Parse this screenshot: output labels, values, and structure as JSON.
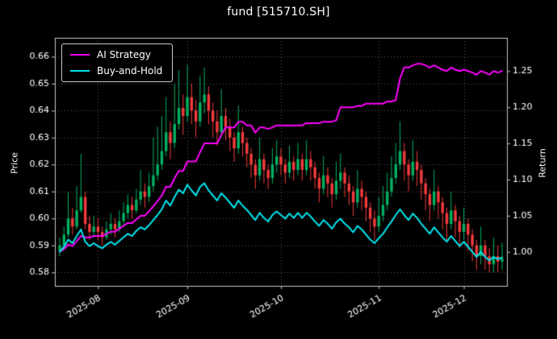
{
  "title": "fund [515710.SH]",
  "axes": {
    "left_label": "Price",
    "right_label": "Return",
    "price_ticks": [
      0.58,
      0.59,
      0.6,
      0.61,
      0.62,
      0.63,
      0.64,
      0.65,
      0.66
    ],
    "return_ticks": [
      1.0,
      1.05,
      1.1,
      1.15,
      1.2,
      1.25
    ],
    "x_tick_labels": [
      "2025-08",
      "2025-09",
      "2025-10",
      "2025-11",
      "2025-12"
    ],
    "price_lim": [
      0.575,
      0.667
    ],
    "return_lim": [
      0.953,
      1.296
    ]
  },
  "colors": {
    "background": "#000000",
    "text": "#ffffff",
    "frame": "#c8c8c8",
    "grid": "#5a5a5a",
    "candle_up": "#00b060",
    "candle_down": "#f23b3b",
    "ai_strategy": "#ff00ff",
    "buy_and_hold": "#00e5ee"
  },
  "legend": {
    "items": [
      {
        "label": "AI Strategy",
        "color": "#ff00ff"
      },
      {
        "label": "Buy-and-Hold",
        "color": "#00e5ee"
      }
    ]
  },
  "chart_data": {
    "type": "candlestick+line",
    "title": "fund [515710.SH]",
    "grid": "dotted",
    "legend_position": "upper left",
    "left_axis": {
      "label": "Price",
      "lim": [
        0.575,
        0.667
      ]
    },
    "right_axis": {
      "label": "Return",
      "lim": [
        0.953,
        1.296
      ]
    },
    "dates": [
      "2025-07-21",
      "2025-07-22",
      "2025-07-23",
      "2025-07-24",
      "2025-07-25",
      "2025-07-28",
      "2025-07-29",
      "2025-07-30",
      "2025-07-31",
      "2025-08-01",
      "2025-08-04",
      "2025-08-05",
      "2025-08-06",
      "2025-08-07",
      "2025-08-08",
      "2025-08-11",
      "2025-08-12",
      "2025-08-13",
      "2025-08-14",
      "2025-08-15",
      "2025-08-18",
      "2025-08-19",
      "2025-08-20",
      "2025-08-21",
      "2025-08-22",
      "2025-08-25",
      "2025-08-26",
      "2025-08-27",
      "2025-08-28",
      "2025-08-29",
      "2025-09-01",
      "2025-09-02",
      "2025-09-03",
      "2025-09-04",
      "2025-09-05",
      "2025-09-08",
      "2025-09-09",
      "2025-09-10",
      "2025-09-11",
      "2025-09-12",
      "2025-09-15",
      "2025-09-16",
      "2025-09-17",
      "2025-09-18",
      "2025-09-19",
      "2025-09-22",
      "2025-09-23",
      "2025-09-24",
      "2025-09-25",
      "2025-09-26",
      "2025-09-29",
      "2025-09-30",
      "2025-10-01",
      "2025-10-02",
      "2025-10-03",
      "2025-10-06",
      "2025-10-07",
      "2025-10-08",
      "2025-10-09",
      "2025-10-10",
      "2025-10-13",
      "2025-10-14",
      "2025-10-15",
      "2025-10-16",
      "2025-10-17",
      "2025-10-20",
      "2025-10-21",
      "2025-10-22",
      "2025-10-23",
      "2025-10-24",
      "2025-10-27",
      "2025-10-28",
      "2025-10-29",
      "2025-10-30",
      "2025-10-31",
      "2025-11-03",
      "2025-11-04",
      "2025-11-05",
      "2025-11-06",
      "2025-11-07",
      "2025-11-10",
      "2025-11-11",
      "2025-11-12",
      "2025-11-13",
      "2025-11-14",
      "2025-11-17",
      "2025-11-18",
      "2025-11-19",
      "2025-11-20",
      "2025-11-21",
      "2025-11-24",
      "2025-11-25",
      "2025-11-26",
      "2025-11-27",
      "2025-11-28",
      "2025-12-01",
      "2025-12-02",
      "2025-12-03",
      "2025-12-04",
      "2025-12-05",
      "2025-12-08",
      "2025-12-09",
      "2025-12-10",
      "2025-12-11",
      "2025-12-12"
    ],
    "open": [
      0.588,
      0.59,
      0.594,
      0.6,
      0.597,
      0.603,
      0.608,
      0.598,
      0.595,
      0.597,
      0.595,
      0.593,
      0.596,
      0.598,
      0.596,
      0.599,
      0.602,
      0.605,
      0.603,
      0.607,
      0.61,
      0.608,
      0.612,
      0.616,
      0.62,
      0.625,
      0.632,
      0.628,
      0.635,
      0.641,
      0.638,
      0.645,
      0.64,
      0.636,
      0.643,
      0.646,
      0.64,
      0.636,
      0.632,
      0.638,
      0.634,
      0.63,
      0.626,
      0.632,
      0.628,
      0.624,
      0.62,
      0.616,
      0.622,
      0.618,
      0.615,
      0.62,
      0.623,
      0.62,
      0.617,
      0.621,
      0.618,
      0.622,
      0.618,
      0.622,
      0.619,
      0.615,
      0.611,
      0.616,
      0.613,
      0.609,
      0.614,
      0.617,
      0.613,
      0.61,
      0.606,
      0.611,
      0.608,
      0.604,
      0.6,
      0.597,
      0.601,
      0.605,
      0.61,
      0.615,
      0.62,
      0.625,
      0.62,
      0.616,
      0.621,
      0.618,
      0.613,
      0.609,
      0.605,
      0.61,
      0.606,
      0.602,
      0.598,
      0.603,
      0.599,
      0.595,
      0.598,
      0.594,
      0.59,
      0.586,
      0.59,
      0.586,
      0.583,
      0.586,
      0.584
    ],
    "high": [
      0.593,
      0.597,
      0.61,
      0.604,
      0.612,
      0.624,
      0.61,
      0.601,
      0.601,
      0.6,
      0.597,
      0.599,
      0.602,
      0.6,
      0.603,
      0.606,
      0.609,
      0.608,
      0.611,
      0.618,
      0.613,
      0.617,
      0.63,
      0.634,
      0.638,
      0.645,
      0.636,
      0.65,
      0.655,
      0.646,
      0.657,
      0.65,
      0.644,
      0.653,
      0.656,
      0.649,
      0.643,
      0.64,
      0.648,
      0.641,
      0.637,
      0.632,
      0.642,
      0.634,
      0.63,
      0.626,
      0.622,
      0.63,
      0.624,
      0.62,
      0.626,
      0.629,
      0.626,
      0.622,
      0.627,
      0.623,
      0.628,
      0.624,
      0.629,
      0.625,
      0.621,
      0.617,
      0.623,
      0.619,
      0.615,
      0.621,
      0.624,
      0.619,
      0.616,
      0.612,
      0.618,
      0.614,
      0.61,
      0.606,
      0.603,
      0.608,
      0.612,
      0.617,
      0.623,
      0.628,
      0.636,
      0.628,
      0.622,
      0.629,
      0.625,
      0.62,
      0.615,
      0.611,
      0.618,
      0.612,
      0.608,
      0.604,
      0.61,
      0.605,
      0.601,
      0.604,
      0.6,
      0.596,
      0.592,
      0.597,
      0.592,
      0.589,
      0.593,
      0.59,
      0.591
    ],
    "low": [
      0.586,
      0.589,
      0.593,
      0.594,
      0.596,
      0.602,
      0.596,
      0.592,
      0.593,
      0.592,
      0.59,
      0.592,
      0.594,
      0.593,
      0.595,
      0.597,
      0.6,
      0.6,
      0.602,
      0.605,
      0.604,
      0.606,
      0.61,
      0.614,
      0.618,
      0.623,
      0.622,
      0.626,
      0.633,
      0.631,
      0.636,
      0.635,
      0.63,
      0.634,
      0.639,
      0.635,
      0.63,
      0.627,
      0.63,
      0.629,
      0.625,
      0.621,
      0.624,
      0.623,
      0.619,
      0.615,
      0.611,
      0.614,
      0.613,
      0.611,
      0.613,
      0.617,
      0.616,
      0.613,
      0.615,
      0.614,
      0.616,
      0.614,
      0.616,
      0.614,
      0.611,
      0.606,
      0.609,
      0.608,
      0.604,
      0.607,
      0.611,
      0.608,
      0.605,
      0.601,
      0.604,
      0.603,
      0.599,
      0.595,
      0.592,
      0.595,
      0.599,
      0.603,
      0.608,
      0.613,
      0.618,
      0.614,
      0.61,
      0.614,
      0.612,
      0.607,
      0.603,
      0.599,
      0.603,
      0.6,
      0.596,
      0.592,
      0.596,
      0.593,
      0.589,
      0.592,
      0.588,
      0.584,
      0.581,
      0.583,
      0.581,
      0.58,
      0.58,
      0.58,
      0.581
    ],
    "close": [
      0.59,
      0.594,
      0.6,
      0.597,
      0.603,
      0.608,
      0.598,
      0.595,
      0.597,
      0.595,
      0.593,
      0.596,
      0.598,
      0.596,
      0.599,
      0.602,
      0.605,
      0.603,
      0.607,
      0.61,
      0.608,
      0.612,
      0.616,
      0.62,
      0.625,
      0.632,
      0.628,
      0.635,
      0.641,
      0.638,
      0.645,
      0.64,
      0.636,
      0.643,
      0.646,
      0.64,
      0.636,
      0.632,
      0.638,
      0.634,
      0.63,
      0.626,
      0.632,
      0.628,
      0.624,
      0.62,
      0.616,
      0.622,
      0.618,
      0.615,
      0.62,
      0.623,
      0.62,
      0.617,
      0.621,
      0.618,
      0.622,
      0.618,
      0.622,
      0.619,
      0.615,
      0.611,
      0.616,
      0.613,
      0.609,
      0.614,
      0.617,
      0.613,
      0.61,
      0.606,
      0.611,
      0.608,
      0.604,
      0.6,
      0.597,
      0.601,
      0.605,
      0.61,
      0.615,
      0.62,
      0.625,
      0.62,
      0.616,
      0.621,
      0.618,
      0.613,
      0.609,
      0.605,
      0.61,
      0.606,
      0.602,
      0.598,
      0.603,
      0.599,
      0.595,
      0.598,
      0.594,
      0.59,
      0.586,
      0.59,
      0.586,
      0.583,
      0.586,
      0.584,
      0.585
    ],
    "series": [
      {
        "name": "AI Strategy",
        "axis": "return",
        "color": "#ff00ff",
        "values": [
          1.0,
          1.004,
          1.01,
          1.008,
          1.015,
          1.022,
          1.02,
          1.02,
          1.022,
          1.022,
          1.022,
          1.025,
          1.028,
          1.028,
          1.032,
          1.036,
          1.04,
          1.04,
          1.045,
          1.05,
          1.05,
          1.056,
          1.063,
          1.07,
          1.078,
          1.09,
          1.09,
          1.102,
          1.112,
          1.112,
          1.125,
          1.125,
          1.125,
          1.138,
          1.15,
          1.15,
          1.15,
          1.15,
          1.162,
          1.172,
          1.172,
          1.172,
          1.18,
          1.18,
          1.175,
          1.175,
          1.165,
          1.172,
          1.172,
          1.17,
          1.172,
          1.175,
          1.175,
          1.175,
          1.175,
          1.175,
          1.175,
          1.175,
          1.178,
          1.178,
          1.178,
          1.178,
          1.18,
          1.18,
          1.18,
          1.182,
          1.2,
          1.2,
          1.2,
          1.2,
          1.202,
          1.202,
          1.205,
          1.205,
          1.205,
          1.205,
          1.205,
          1.208,
          1.208,
          1.21,
          1.24,
          1.255,
          1.255,
          1.258,
          1.26,
          1.26,
          1.258,
          1.255,
          1.258,
          1.255,
          1.252,
          1.25,
          1.255,
          1.252,
          1.25,
          1.252,
          1.25,
          1.248,
          1.245,
          1.25,
          1.248,
          1.245,
          1.25,
          1.248,
          1.25
        ]
      },
      {
        "name": "Buy-and-Hold",
        "axis": "return",
        "color": "#00e5ee",
        "values": [
          1.0,
          1.007,
          1.017,
          1.012,
          1.022,
          1.031,
          1.014,
          1.008,
          1.012,
          1.008,
          1.005,
          1.01,
          1.014,
          1.01,
          1.015,
          1.02,
          1.025,
          1.022,
          1.029,
          1.034,
          1.031,
          1.037,
          1.044,
          1.051,
          1.059,
          1.071,
          1.064,
          1.076,
          1.086,
          1.081,
          1.093,
          1.085,
          1.078,
          1.09,
          1.095,
          1.085,
          1.078,
          1.071,
          1.081,
          1.075,
          1.068,
          1.061,
          1.071,
          1.064,
          1.058,
          1.051,
          1.044,
          1.054,
          1.047,
          1.042,
          1.051,
          1.056,
          1.051,
          1.046,
          1.053,
          1.047,
          1.054,
          1.047,
          1.054,
          1.049,
          1.042,
          1.036,
          1.044,
          1.039,
          1.032,
          1.041,
          1.046,
          1.039,
          1.034,
          1.027,
          1.036,
          1.031,
          1.024,
          1.017,
          1.012,
          1.019,
          1.025,
          1.034,
          1.042,
          1.051,
          1.059,
          1.051,
          1.044,
          1.053,
          1.047,
          1.039,
          1.032,
          1.025,
          1.034,
          1.027,
          1.02,
          1.014,
          1.022,
          1.015,
          1.008,
          1.014,
          1.007,
          1.0,
          0.993,
          1.0,
          0.993,
          0.988,
          0.993,
          0.99,
          0.992
        ]
      }
    ]
  }
}
